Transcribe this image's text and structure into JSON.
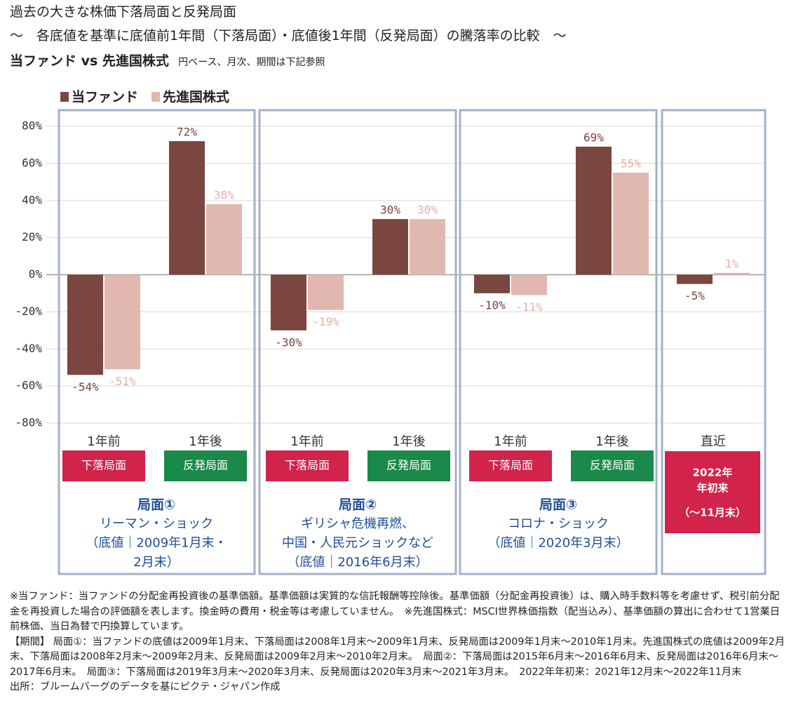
{
  "chart_data": {
    "type": "bar",
    "title": "過去の大きな株価下落局面と反発局面",
    "subtitle": "～　各底値を基準に底値前1年間（下落局面）・底値後1年間（反発局面）の騰落率の比較　～",
    "heading": "当ファンド vs 先進国株式",
    "heading_note": "円ベース、月次、期間は下記参照",
    "categories": [
      "1年前",
      "1年後",
      "1年前",
      "1年後",
      "1年前",
      "1年後",
      "直近"
    ],
    "tags": [
      "下落局面",
      "反発局面",
      "下落局面",
      "反発局面",
      "下落局面",
      "反発局面"
    ],
    "recent_tag": [
      "2022年",
      "年初来",
      "（～11月末）"
    ],
    "panels": [
      {
        "title": "局面①",
        "lines": [
          "リーマン・ショック",
          "（底値｜2009年1月末・",
          "2月末）"
        ]
      },
      {
        "title": "局面②",
        "lines": [
          "ギリシャ危機再燃、",
          "中国・人民元ショックなど",
          "（底値｜2016年6月末）"
        ]
      },
      {
        "title": "局面③",
        "lines": [
          "コロナ・ショック",
          "（底値｜2020年3月末）"
        ]
      }
    ],
    "series": [
      {
        "name": "当ファンド",
        "color": "#7b4540",
        "label_color": "#7b4540",
        "values": [
          -54,
          72,
          -30,
          30,
          -10,
          69,
          -5
        ],
        "value_labels": [
          "-54%",
          "72%",
          "-30%",
          "30%",
          "-10%",
          "69%",
          "-5%"
        ]
      },
      {
        "name": "先進国株式",
        "color": "#e0b8b0",
        "label_color": "#e3b1a6",
        "values": [
          -51,
          38,
          -19,
          30,
          -11,
          55,
          1
        ],
        "value_labels": [
          "-51%",
          "38%",
          "-19%",
          "30%",
          "-11%",
          "55%",
          "1%"
        ]
      }
    ],
    "ylim": [
      -80,
      80
    ],
    "yticks": [
      {
        "value": 80,
        "label": "80%"
      },
      {
        "value": 60,
        "label": "60%"
      },
      {
        "value": 40,
        "label": "40%"
      },
      {
        "value": 20,
        "label": "20%"
      },
      {
        "value": 0,
        "label": "0%"
      },
      {
        "value": -20,
        "label": "-20%"
      },
      {
        "value": -40,
        "label": "-40%"
      },
      {
        "value": -60,
        "label": "-60%"
      },
      {
        "value": -80,
        "label": "-80%"
      }
    ],
    "grid": true,
    "notes": [
      "※当ファンド：当ファンドの分配金再投資後の基準価額。基準価額は実質的な信託報酬等控除後。基準価額（分配金再投資後）は、購入時手数料等を考慮せず、税引前分配金を再投資した場合の評価額を表します。換金時の費用・税金等は考慮していません。　※先進国株式：MSCI世界株価指数（配当込み）、基準価額の算出に合わせて1営業日前株価、当日為替で円換算しています。",
      "【期間】 局面①：当ファンドの底値は2009年1月末、下落局面は2008年1月末～2009年1月末、反発局面は2009年1月末～2010年1月末。先進国株式の底値は2009年2月末、下落局面は2008年2月末～2009年2月末、反発局面は2009年2月末～2010年2月末。　局面②：下落局面は2015年6月末～2016年6月末、反発局面は2016年6月末～2017年6月末。　局面③：下落局面は2019年3月末～2020年3月末、反発局面は2020年3月末～2021年3月末。　2022年年初来：2021年12月末～2022年11月末",
      "出所：ブルームバーグのデータを基にピクテ・ジャパン作成"
    ]
  }
}
